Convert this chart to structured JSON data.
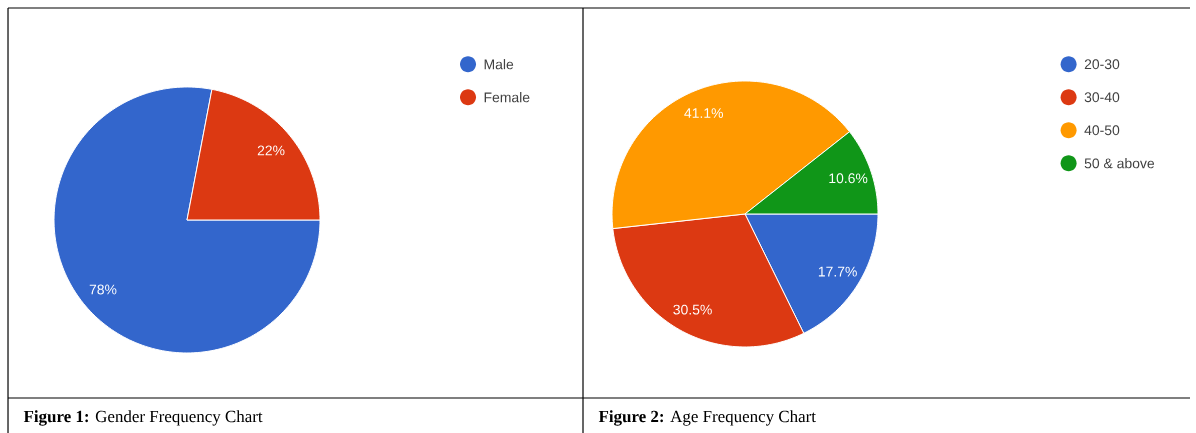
{
  "chart_data": [
    {
      "type": "pie",
      "categories": [
        "Male",
        "Female"
      ],
      "values": [
        78,
        22
      ],
      "colors": [
        "#3366cc",
        "#dc3912"
      ],
      "value_labels": [
        "78%",
        "22%"
      ],
      "legend": "top right",
      "annotations": [
        "**Figure 1:** Gender Frequency Chart"
      ]
    },
    {
      "type": "pie",
      "categories": [
        "20-30",
        "30-40",
        "40-50",
        "50 & above"
      ],
      "values": [
        17.7,
        30.5,
        41.1,
        10.6
      ],
      "colors": [
        "#3366cc",
        "#dc3912",
        "#ff9900",
        "#109618"
      ],
      "value_labels": [
        "17.7%",
        "30.5%",
        "41.1%",
        "10.6%"
      ],
      "legend": "top right",
      "annotations": [
        "**Figure 2:** Age Frequency Chart"
      ]
    }
  ]
}
